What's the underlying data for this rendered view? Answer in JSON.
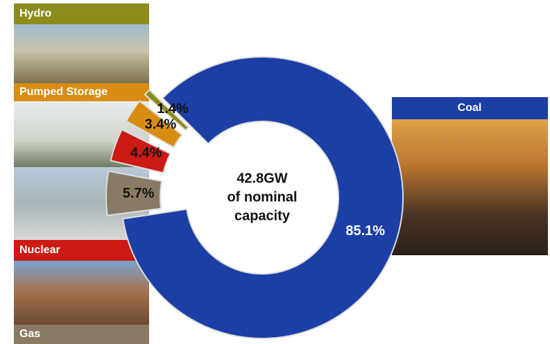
{
  "chart_data": {
    "type": "donut",
    "categories": [
      "Coal",
      "Gas",
      "Nuclear",
      "Pumped Storage",
      "Hydro"
    ],
    "values": [
      85.1,
      5.7,
      4.4,
      3.4,
      1.4
    ],
    "value_labels": [
      "85.1%",
      "5.7%",
      "4.4%",
      "3.4%",
      "1.4%"
    ],
    "colors": [
      "#1c3fa6",
      "#8a7a64",
      "#cc1a14",
      "#d98c12",
      "#8c8c1c"
    ],
    "center_label": [
      "42.8GW",
      "of nominal",
      "capacity"
    ]
  }
}
